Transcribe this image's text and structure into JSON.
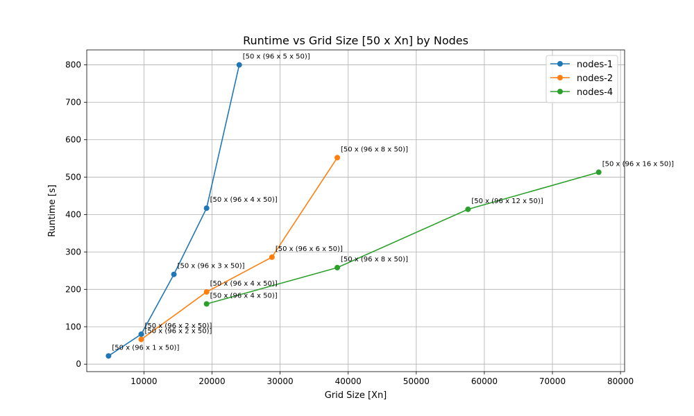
{
  "chart_data": {
    "type": "line",
    "title": "Runtime vs Grid Size [50 x Xn] by Nodes",
    "xlabel": "Grid Size [Xn]",
    "ylabel": "Runtime [s]",
    "xlim": [
      1600,
      80600
    ],
    "ylim": [
      -20,
      840
    ],
    "xticks": [
      10000,
      20000,
      30000,
      40000,
      50000,
      60000,
      70000,
      80000
    ],
    "yticks": [
      0,
      100,
      200,
      300,
      400,
      500,
      600,
      700,
      800
    ],
    "grid": true,
    "legend_position": "top-right",
    "series": [
      {
        "name": "nodes-1",
        "color": "#1f77b4",
        "x": [
          4800,
          9600,
          14400,
          19200,
          24000
        ],
        "y": [
          22,
          80,
          240,
          417,
          800
        ],
        "labels": [
          "[50 x (96 x 1 x 50)]",
          "[50 x (96 x 2 x 50)]",
          "[50 x (96 x 3 x 50)]",
          "[50 x (96 x 4 x 50)]",
          "[50 x (96 x 5 x 50)]"
        ]
      },
      {
        "name": "nodes-2",
        "color": "#ff7f0e",
        "x": [
          9600,
          19200,
          28800,
          38400
        ],
        "y": [
          66,
          193,
          286,
          552
        ],
        "labels": [
          "[50 x (96 x 2 x 50)]",
          "[50 x (96 x 4 x 50)]",
          "[50 x (96 x 6 x 50)]",
          "[50 x (96 x 8 x 50)]"
        ]
      },
      {
        "name": "nodes-4",
        "color": "#2ca02c",
        "x": [
          19200,
          38400,
          57600,
          76800
        ],
        "y": [
          161,
          258,
          414,
          513
        ],
        "labels": [
          "[50 x (96 x 4 x 50)]",
          "[50 x (96 x 8 x 50)]",
          "[50 x (96 x 12 x 50)]",
          "[50 x (96 x 16 x 50)]"
        ]
      }
    ]
  }
}
